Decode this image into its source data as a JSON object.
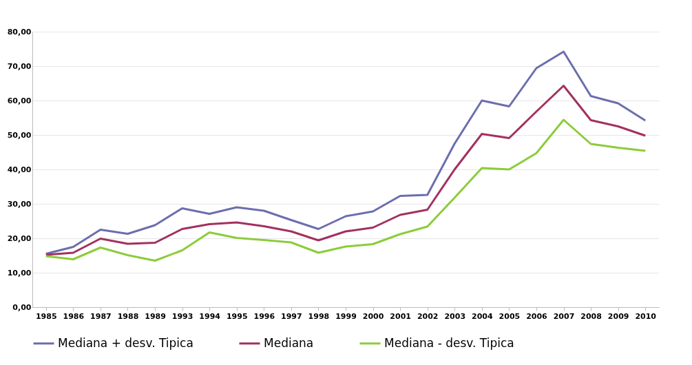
{
  "chart_data": {
    "type": "line",
    "categories": [
      "1985",
      "1986",
      "1987",
      "1988",
      "1989",
      "1993",
      "1994",
      "1995",
      "1996",
      "1997",
      "1998",
      "1999",
      "2000",
      "2001",
      "2002",
      "2003",
      "2004",
      "2005",
      "2006",
      "2007",
      "2008",
      "2009",
      "2010"
    ],
    "series": [
      {
        "name": "Mediana + desv. Tipica",
        "color": "#6b6eae",
        "values": [
          15.5,
          17.5,
          22.5,
          21.3,
          23.8,
          28.7,
          27.1,
          29,
          28,
          25.3,
          22.7,
          26.4,
          27.8,
          32.3,
          32.6,
          47.5,
          60,
          58.3,
          69.4,
          74.2,
          61.3,
          59.2,
          54.2
        ]
      },
      {
        "name": "Mediana",
        "color": "#a3305f",
        "values": [
          15.2,
          15.8,
          19.9,
          18.4,
          18.7,
          22.7,
          24.1,
          24.6,
          23.5,
          22,
          19.4,
          22,
          23.1,
          26.8,
          28.3,
          40,
          50.3,
          49.1,
          56.8,
          64.3,
          54.3,
          52.5,
          49.8
        ]
      },
      {
        "name": "Mediana - desv. Tipica",
        "color": "#8ccc3a",
        "values": [
          14.8,
          13.9,
          17.3,
          15.1,
          13.5,
          16.5,
          21.7,
          20.1,
          19.5,
          18.8,
          15.8,
          17.6,
          18.3,
          21.2,
          23.4,
          31.8,
          40.4,
          40,
          44.7,
          54.4,
          47.4,
          46.3,
          45.4
        ]
      }
    ],
    "ylim": [
      0,
      80
    ],
    "yticks": [
      {
        "value": 0,
        "label": "0,00"
      },
      {
        "value": 10,
        "label": "10,00"
      },
      {
        "value": 20,
        "label": "20,00"
      },
      {
        "value": 30,
        "label": "30,00"
      },
      {
        "value": 40,
        "label": "40,00"
      },
      {
        "value": 50,
        "label": "50,00"
      },
      {
        "value": 60,
        "label": "60,00"
      },
      {
        "value": 70,
        "label": "70,00"
      },
      {
        "value": 80,
        "label": "80,00"
      }
    ],
    "grid": "y",
    "legend": "bottom",
    "marker": "none",
    "line_style": "solid"
  }
}
